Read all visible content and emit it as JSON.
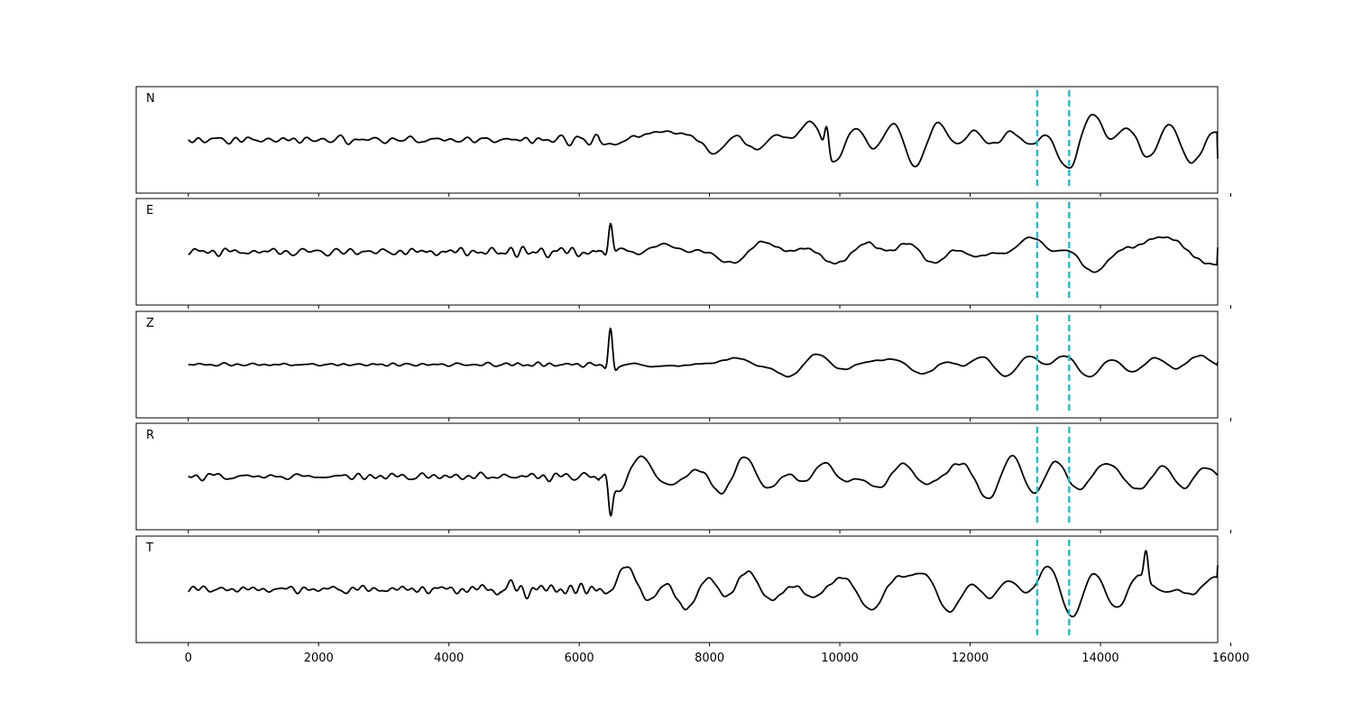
{
  "chart_data": {
    "type": "line",
    "xlim": [
      -800,
      15800
    ],
    "xticks": [
      0,
      2000,
      4000,
      6000,
      8000,
      10000,
      12000,
      14000,
      16000
    ],
    "xtick_labels": [
      "0",
      "2000",
      "4000",
      "6000",
      "8000",
      "10000",
      "12000",
      "14000",
      "16000"
    ],
    "x_samples": 15800,
    "grid": false,
    "line_color": "#000000",
    "marker_color": "#17becf",
    "markers": [
      13030,
      13520
    ],
    "marker_style": "dashed",
    "signal_onset": 6300,
    "panels": [
      {
        "label": "N",
        "seed": 11,
        "noise_amp": 0.07,
        "signal_amp": 0.42,
        "spike_x": 9800,
        "spike_amp": 0.45,
        "end_value": -0.35
      },
      {
        "label": "E",
        "seed": 23,
        "noise_amp": 0.07,
        "signal_amp": 0.35,
        "spike_x": 6480,
        "spike_amp": 0.55,
        "end_value": 0.08
      },
      {
        "label": "Z",
        "seed": 37,
        "noise_amp": 0.03,
        "signal_amp": 0.2,
        "spike_x": 6480,
        "spike_amp": 0.75,
        "end_value": 0.05
      },
      {
        "label": "R",
        "seed": 41,
        "noise_amp": 0.07,
        "signal_amp": 0.38,
        "spike_x": 6480,
        "spike_amp": -0.55,
        "end_value": 0.05
      },
      {
        "label": "T",
        "seed": 53,
        "noise_amp": 0.08,
        "signal_amp": 0.5,
        "spike_x": 14700,
        "spike_amp": 0.5,
        "end_value": 0.45
      }
    ]
  }
}
